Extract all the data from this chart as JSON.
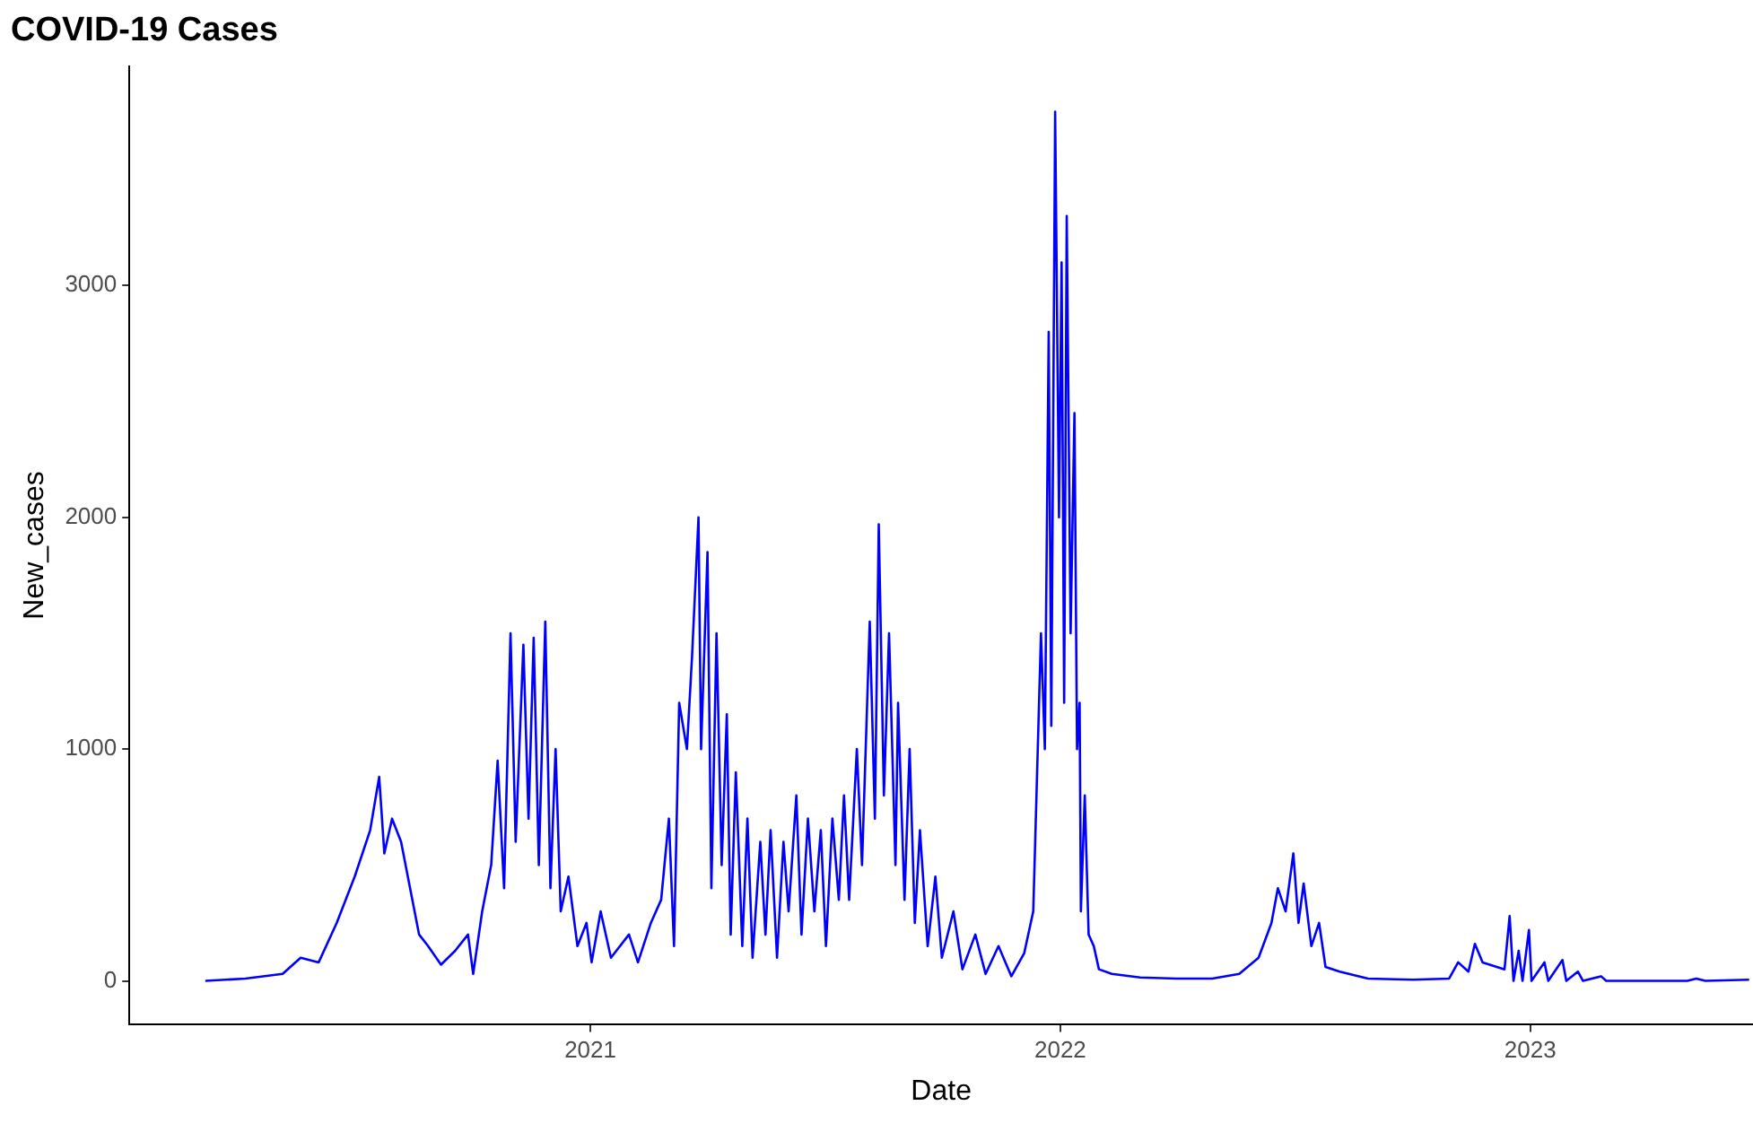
{
  "chart_data": {
    "type": "line",
    "title": "COVID-19 Cases",
    "xlabel": "Date",
    "ylabel": "New_cases",
    "x": [
      "2020-03-08",
      "2020-04-08",
      "2020-05-07",
      "2020-05-21",
      "2020-06-04",
      "2020-06-18",
      "2020-07-02",
      "2020-07-14",
      "2020-07-21",
      "2020-07-25",
      "2020-07-31",
      "2020-08-07",
      "2020-08-14",
      "2020-08-21",
      "2020-08-28",
      "2020-09-07",
      "2020-09-18",
      "2020-09-28",
      "2020-10-02",
      "2020-10-09",
      "2020-10-16",
      "2020-10-21",
      "2020-10-26",
      "2020-10-31",
      "2020-11-04",
      "2020-11-10",
      "2020-11-14",
      "2020-11-18",
      "2020-11-22",
      "2020-11-27",
      "2020-12-01",
      "2020-12-05",
      "2020-12-09",
      "2020-12-15",
      "2020-12-22",
      "2020-12-29",
      "2021-01-02",
      "2021-01-09",
      "2021-01-17",
      "2021-01-31",
      "2021-02-07",
      "2021-02-17",
      "2021-02-25",
      "2021-03-03",
      "2021-03-07",
      "2021-03-11",
      "2021-03-17",
      "2021-03-21",
      "2021-03-26",
      "2021-03-28",
      "2021-04-02",
      "2021-04-05",
      "2021-04-09",
      "2021-04-13",
      "2021-04-17",
      "2021-04-20",
      "2021-04-24",
      "2021-04-29",
      "2021-05-03",
      "2021-05-07",
      "2021-05-13",
      "2021-05-17",
      "2021-05-21",
      "2021-05-26",
      "2021-05-31",
      "2021-06-04",
      "2021-06-10",
      "2021-06-14",
      "2021-06-19",
      "2021-06-24",
      "2021-06-29",
      "2021-07-03",
      "2021-07-08",
      "2021-07-13",
      "2021-07-17",
      "2021-07-21",
      "2021-07-27",
      "2021-07-31",
      "2021-08-06",
      "2021-08-10",
      "2021-08-13",
      "2021-08-17",
      "2021-08-21",
      "2021-08-26",
      "2021-08-28",
      "2021-09-02",
      "2021-09-06",
      "2021-09-10",
      "2021-09-14",
      "2021-09-20",
      "2021-09-26",
      "2021-10-01",
      "2021-10-10",
      "2021-10-17",
      "2021-10-27",
      "2021-11-04",
      "2021-11-14",
      "2021-11-24",
      "2021-12-04",
      "2021-12-11",
      "2021-12-17",
      "2021-12-20",
      "2021-12-23",
      "2021-12-25",
      "2021-12-28",
      "2021-12-31",
      "2022-01-02",
      "2022-01-04",
      "2022-01-06",
      "2022-01-09",
      "2022-01-12",
      "2022-01-14",
      "2022-01-16",
      "2022-01-17",
      "2022-01-20",
      "2022-01-23",
      "2022-01-27",
      "2022-01-31",
      "2022-02-10",
      "2022-03-04",
      "2022-04-01",
      "2022-04-29",
      "2022-05-20",
      "2022-06-04",
      "2022-06-14",
      "2022-06-19",
      "2022-06-25",
      "2022-07-01",
      "2022-07-05",
      "2022-07-09",
      "2022-07-15",
      "2022-07-21",
      "2022-07-26",
      "2022-08-06",
      "2022-08-28",
      "2022-10-02",
      "2022-10-30",
      "2022-11-06",
      "2022-11-14",
      "2022-11-19",
      "2022-11-25",
      "2022-12-12",
      "2022-12-16",
      "2022-12-19",
      "2022-12-23",
      "2022-12-26",
      "2022-12-31",
      "2023-01-02",
      "2023-01-12",
      "2023-01-15",
      "2023-01-26",
      "2023-01-29",
      "2023-02-07",
      "2023-02-11",
      "2023-02-25",
      "2023-03-01",
      "2023-05-03",
      "2023-05-10",
      "2023-05-17",
      "2023-06-20"
    ],
    "series": [
      {
        "color": "#0000ff",
        "values": [
          0,
          10,
          30,
          100,
          80,
          250,
          450,
          650,
          880,
          550,
          700,
          600,
          400,
          200,
          150,
          70,
          130,
          200,
          30,
          300,
          500,
          950,
          400,
          1500,
          600,
          1450,
          700,
          1480,
          500,
          1550,
          400,
          1000,
          300,
          450,
          150,
          250,
          80,
          300,
          100,
          200,
          80,
          250,
          350,
          700,
          150,
          1200,
          1000,
          1400,
          2000,
          1000,
          1850,
          400,
          1500,
          500,
          1150,
          200,
          900,
          150,
          700,
          100,
          600,
          200,
          650,
          100,
          600,
          300,
          800,
          200,
          700,
          300,
          650,
          150,
          700,
          350,
          800,
          350,
          1000,
          500,
          1550,
          700,
          1970,
          800,
          1500,
          500,
          1200,
          350,
          1000,
          250,
          650,
          150,
          450,
          100,
          300,
          50,
          200,
          30,
          150,
          20,
          120,
          300,
          1500,
          1000,
          2800,
          1100,
          3750,
          2000,
          3100,
          1200,
          3300,
          1500,
          2450,
          1000,
          1200,
          300,
          800,
          200,
          150,
          50,
          30,
          15,
          10,
          10,
          30,
          100,
          250,
          400,
          300,
          550,
          250,
          420,
          150,
          250,
          60,
          40,
          10,
          5,
          10,
          80,
          40,
          160,
          80,
          50,
          280,
          0,
          130,
          0,
          220,
          0,
          80,
          0,
          90,
          0,
          40,
          0,
          20,
          0,
          0,
          10,
          0,
          5
        ]
      }
    ],
    "xlim": [
      "2020-01-09",
      "2023-06-23"
    ],
    "xticks": [
      {
        "value": "2021-01-01",
        "label": "2021"
      },
      {
        "value": "2022-01-01",
        "label": "2022"
      },
      {
        "value": "2023-01-01",
        "label": "2023"
      }
    ],
    "ylim": [
      -189,
      3947
    ],
    "yticks": [
      0,
      1000,
      2000,
      3000
    ],
    "grid": false,
    "legend": false,
    "marker": "none",
    "line_style": "solid"
  }
}
